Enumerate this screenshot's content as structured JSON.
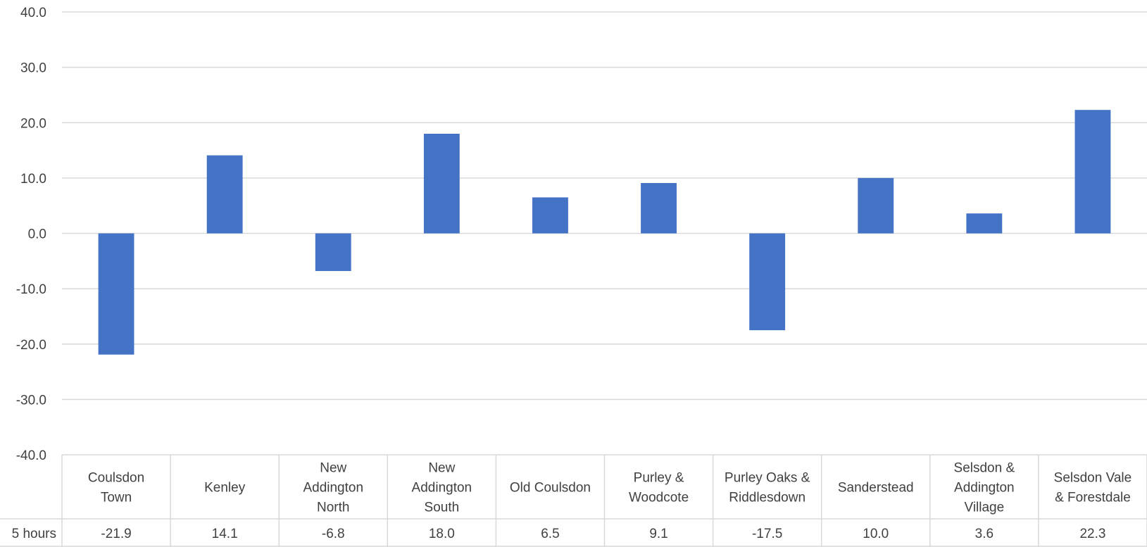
{
  "chart_data": {
    "type": "bar",
    "categories": [
      [
        "Coulsdon",
        "Town"
      ],
      [
        "Kenley"
      ],
      [
        "New",
        "Addington",
        "North"
      ],
      [
        "New",
        "Addington",
        "South"
      ],
      [
        "Old Coulsdon"
      ],
      [
        "Purley &",
        "Woodcote"
      ],
      [
        "Purley Oaks &",
        "Riddlesdown"
      ],
      [
        "Sanderstead"
      ],
      [
        "Selsdon &",
        "Addington",
        "Village"
      ],
      [
        "Selsdon Vale",
        "& Forestdale"
      ]
    ],
    "series": [
      {
        "name": "5 hours",
        "values": [
          -21.9,
          14.1,
          -6.8,
          18.0,
          6.5,
          9.1,
          -17.5,
          10.0,
          3.6,
          22.3
        ],
        "value_labels": [
          "-21.9",
          "14.1",
          "-6.8",
          "18.0",
          "6.5",
          "9.1",
          "-17.5",
          "10.0",
          "3.6",
          "22.3"
        ]
      }
    ],
    "ylim": [
      -40,
      40
    ],
    "yticks": [
      40,
      30,
      20,
      10,
      0,
      -10,
      -20,
      -30,
      -40
    ],
    "ytick_labels": [
      "40.0",
      "30.0",
      "20.0",
      "10.0",
      "0.0",
      "-10.0",
      "-20.0",
      "-30.0",
      "-40.0"
    ],
    "grid": true,
    "data_table": true,
    "bar_color": "#4472c4",
    "title": "",
    "xlabel": "",
    "ylabel": ""
  }
}
